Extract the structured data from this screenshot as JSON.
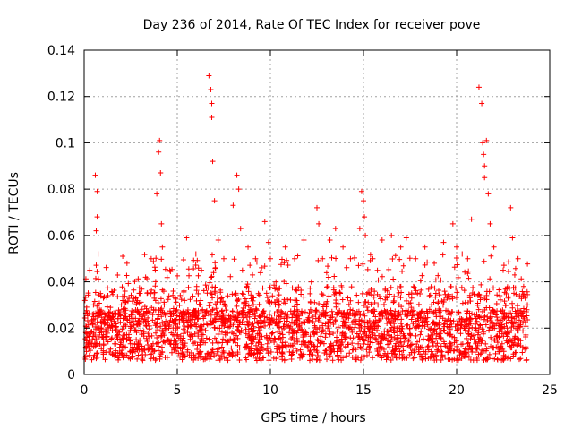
{
  "chart_data": {
    "type": "scatter",
    "title": "Day 236 of 2014, Rate Of TEC Index for receiver pove",
    "xlabel": "GPS time / hours",
    "ylabel": "ROTI / TECUs",
    "xlim": [
      0,
      25
    ],
    "ylim": [
      0,
      0.14
    ],
    "xticks": [
      0,
      5,
      10,
      15,
      20,
      25
    ],
    "xtick_labels": [
      "0",
      "5",
      "10",
      "15",
      "20",
      "25"
    ],
    "yticks": [
      0,
      0.02,
      0.04,
      0.06,
      0.08,
      0.1,
      0.12,
      0.14
    ],
    "ytick_labels": [
      "0",
      "0.02",
      "0.04",
      "0.06",
      "0.08",
      "0.1",
      "0.12",
      "0.14"
    ],
    "grid": true,
    "marker": "+",
    "marker_color": "#ff0000",
    "series": [
      {
        "name": "ROTI",
        "x": [
          0.1,
          0.3,
          0.5,
          0.6,
          0.65,
          0.7,
          0.7,
          0.75,
          0.8,
          1.0,
          1.5,
          2.0,
          2.3,
          2.5,
          3.0,
          3.3,
          3.6,
          3.9,
          4.0,
          4.05,
          4.1,
          4.15,
          4.2,
          4.3,
          4.6,
          5.0,
          5.5,
          6.0,
          6.3,
          6.7,
          6.8,
          6.85,
          6.85,
          6.9,
          7.0,
          7.2,
          7.5,
          8.0,
          8.2,
          8.3,
          8.4,
          8.5,
          8.8,
          9.2,
          9.7,
          9.9,
          10.0,
          10.3,
          10.8,
          11.3,
          11.8,
          12.2,
          12.5,
          12.6,
          12.8,
          13.2,
          13.5,
          13.9,
          14.3,
          14.8,
          14.9,
          15.0,
          15.05,
          15.1,
          15.5,
          16.0,
          16.5,
          17.0,
          17.3,
          17.8,
          18.3,
          18.8,
          19.3,
          19.8,
          20.0,
          20.3,
          20.8,
          21.2,
          21.35,
          21.4,
          21.45,
          21.5,
          21.5,
          21.6,
          21.7,
          21.8,
          22.0,
          22.5,
          22.9,
          23.0,
          23.3,
          23.6,
          23.8
        ],
        "y": [
          0.018,
          0.045,
          0.03,
          0.086,
          0.062,
          0.079,
          0.068,
          0.052,
          0.02,
          0.016,
          0.025,
          0.03,
          0.048,
          0.02,
          0.035,
          0.042,
          0.05,
          0.078,
          0.096,
          0.101,
          0.087,
          0.065,
          0.055,
          0.03,
          0.045,
          0.02,
          0.059,
          0.052,
          0.045,
          0.129,
          0.123,
          0.117,
          0.111,
          0.092,
          0.075,
          0.058,
          0.05,
          0.073,
          0.086,
          0.08,
          0.063,
          0.045,
          0.055,
          0.05,
          0.066,
          0.057,
          0.05,
          0.04,
          0.055,
          0.05,
          0.058,
          0.04,
          0.072,
          0.065,
          0.05,
          0.058,
          0.063,
          0.055,
          0.05,
          0.063,
          0.079,
          0.075,
          0.068,
          0.06,
          0.05,
          0.058,
          0.06,
          0.055,
          0.059,
          0.05,
          0.055,
          0.048,
          0.057,
          0.065,
          0.055,
          0.052,
          0.067,
          0.124,
          0.117,
          0.1,
          0.095,
          0.09,
          0.085,
          0.101,
          0.078,
          0.065,
          0.055,
          0.045,
          0.072,
          0.059,
          0.05,
          0.038,
          0.03
        ]
      }
    ]
  }
}
